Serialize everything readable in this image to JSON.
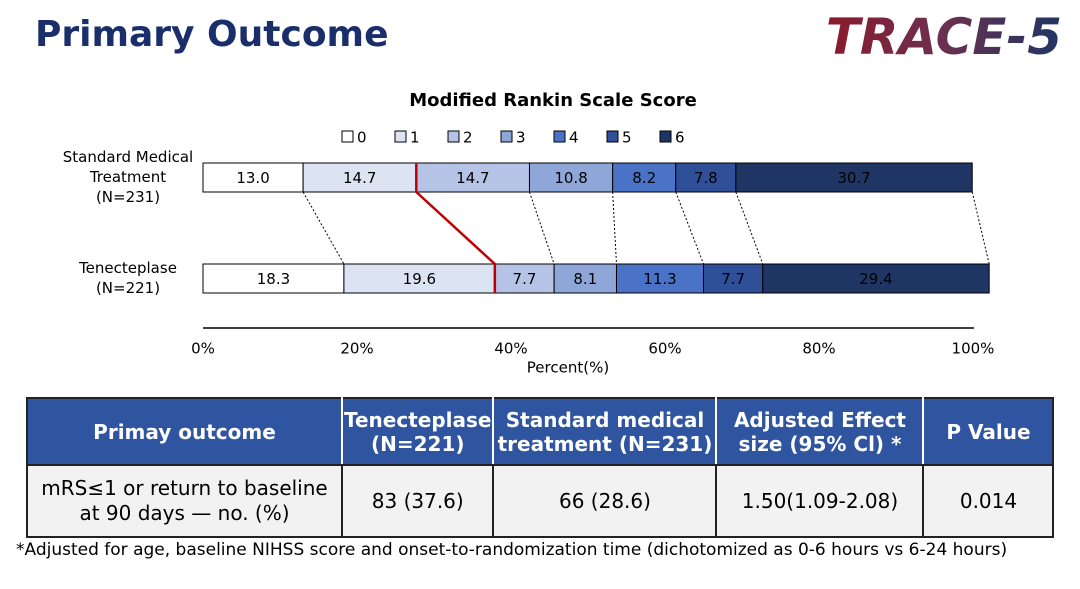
{
  "header": {
    "title": "Primary Outcome",
    "logo": "TRACE-5"
  },
  "chart_data": {
    "type": "stacked_barh",
    "title": "Modified Rankin Scale Score",
    "categories": [
      "Standard Medical\nTreatment\n(N=231)",
      "Tenecteplase\n(N=221)"
    ],
    "series": [
      {
        "name": "0",
        "color": "#ffffff",
        "values": [
          13.0,
          18.3
        ],
        "value_labels": [
          "13.0",
          "18.3"
        ]
      },
      {
        "name": "1",
        "color": "#dce3f3",
        "values": [
          14.7,
          19.6
        ],
        "value_labels": [
          "14.7",
          "19.6"
        ]
      },
      {
        "name": "2",
        "color": "#b4c3e6",
        "values": [
          14.7,
          7.7
        ],
        "value_labels": [
          "14.7",
          "7.7"
        ]
      },
      {
        "name": "3",
        "color": "#8ea6d8",
        "values": [
          10.8,
          8.1
        ],
        "value_labels": [
          "10.8",
          "8.1"
        ]
      },
      {
        "name": "4",
        "color": "#4a72c6",
        "values": [
          8.2,
          11.3
        ],
        "value_labels": [
          "8.2",
          "11.3"
        ]
      },
      {
        "name": "5",
        "color": "#2f4f99",
        "values": [
          7.8,
          7.7
        ],
        "value_labels": [
          "7.8",
          "7.7"
        ]
      },
      {
        "name": "6",
        "color": "#1f3564",
        "values": [
          30.7,
          29.4
        ],
        "value_labels": [
          "30.7",
          "29.4"
        ]
      }
    ],
    "xlim": [
      0,
      100
    ],
    "xticks": [
      {
        "value": 0,
        "label": "0%"
      },
      {
        "value": 20,
        "label": "20%"
      },
      {
        "value": 40,
        "label": "40%"
      },
      {
        "value": 60,
        "label": "60%"
      },
      {
        "value": 80,
        "label": "80%"
      },
      {
        "value": 100,
        "label": "100%"
      }
    ],
    "xlabel": "Percent(%)",
    "legend": "top"
  },
  "table": {
    "header": [
      "Primay outcome",
      "Tenecteplase\n(N=221)",
      "Standard medical\ntreatment (N=231)",
      "Adjusted Effect\nsize (95% Cl) *",
      "P Value"
    ],
    "rows": [
      [
        "mRS≤1 or  return to baseline\nat 90 days — no. (%)",
        "83 (37.6)",
        "66 (28.6)",
        "1.50(1.09-2.08)",
        "0.014"
      ]
    ]
  },
  "footnote": "*Adjusted for age, baseline NIHSS score and onset-to-randomization time (dichotomized as 0-6 hours vs 6-24 hours)"
}
